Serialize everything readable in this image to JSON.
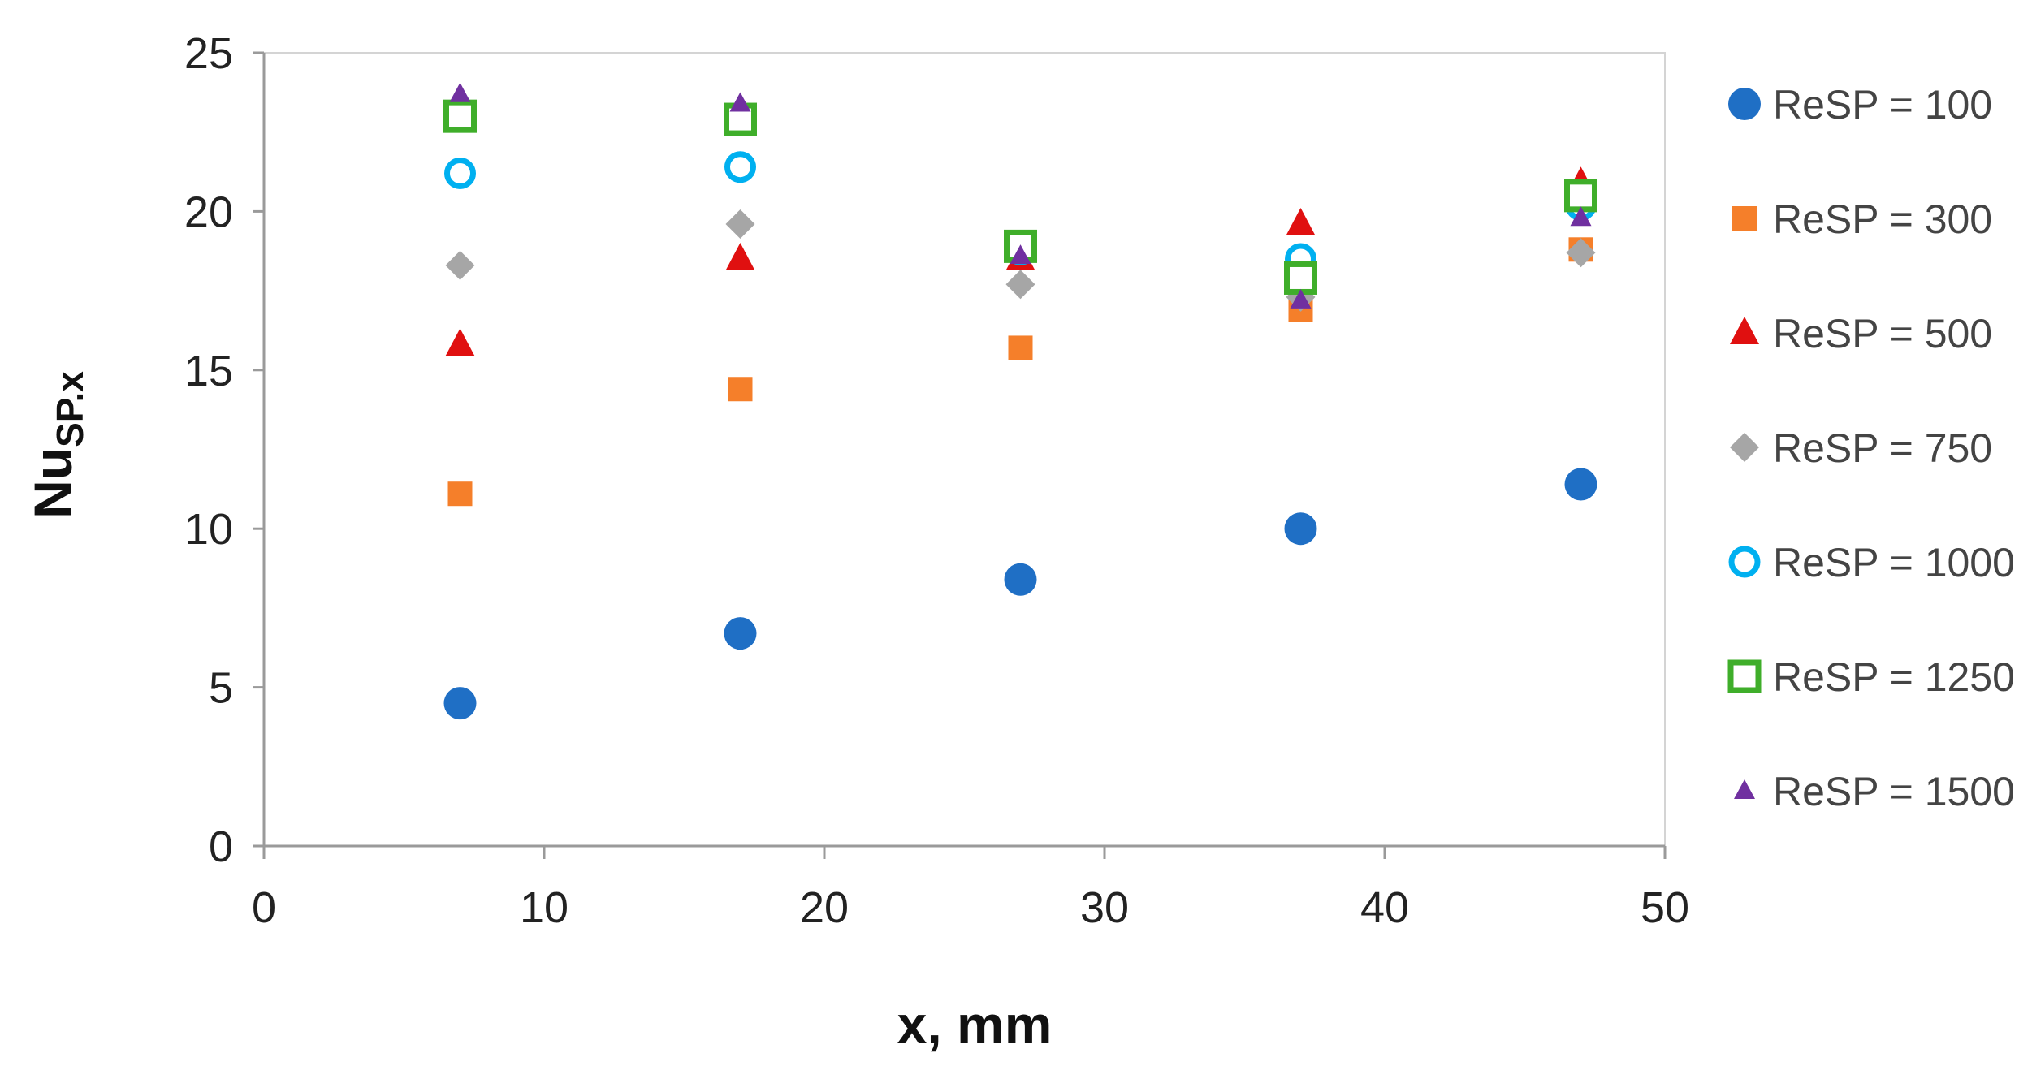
{
  "chart_data": {
    "type": "scatter",
    "xlabel": "x, mm",
    "ylabel": {
      "main": "Nu",
      "subscript": "SP.x"
    },
    "xlim": [
      0,
      50
    ],
    "ylim": [
      0,
      25
    ],
    "x_ticks": [
      0,
      10,
      20,
      30,
      40,
      50
    ],
    "y_ticks": [
      0,
      5,
      10,
      15,
      20,
      25
    ],
    "grid": false,
    "legend_position": "right",
    "series": [
      {
        "name": "ReSP = 100",
        "marker": "circle-filled",
        "color": "#1f6fc5",
        "points": [
          [
            7,
            4.5
          ],
          [
            17,
            6.7
          ],
          [
            27,
            8.4
          ],
          [
            37,
            10.0
          ],
          [
            47,
            11.4
          ]
        ]
      },
      {
        "name": "ReSP = 300",
        "marker": "square-filled",
        "color": "#f57f2a",
        "points": [
          [
            7,
            11.1
          ],
          [
            17,
            14.4
          ],
          [
            27,
            15.7
          ],
          [
            37,
            16.9
          ],
          [
            47,
            18.8
          ]
        ]
      },
      {
        "name": "ReSP = 500",
        "marker": "triangle-filled",
        "color": "#e01010",
        "points": [
          [
            7,
            15.8
          ],
          [
            17,
            18.5
          ],
          [
            27,
            18.5
          ],
          [
            37,
            19.6
          ],
          [
            47,
            20.9
          ]
        ]
      },
      {
        "name": "ReSP = 750",
        "marker": "diamond-filled",
        "color": "#a6a6a6",
        "points": [
          [
            7,
            18.3
          ],
          [
            17,
            19.6
          ],
          [
            27,
            17.7
          ],
          [
            37,
            17.3
          ],
          [
            47,
            18.7
          ]
        ]
      },
      {
        "name": "ReSP = 1000",
        "marker": "circle-open",
        "color": "#00b0f0",
        "points": [
          [
            7,
            21.2
          ],
          [
            17,
            21.4
          ],
          [
            27,
            18.8
          ],
          [
            37,
            18.5
          ],
          [
            47,
            20.2
          ]
        ]
      },
      {
        "name": "ReSP = 1250",
        "marker": "square-open",
        "color": "#3fae2a",
        "points": [
          [
            7,
            23.0
          ],
          [
            17,
            22.9
          ],
          [
            27,
            18.9
          ],
          [
            37,
            17.9
          ],
          [
            47,
            20.5
          ]
        ]
      },
      {
        "name": "ReSP = 1500",
        "marker": "triangle-small",
        "color": "#7030a0",
        "points": [
          [
            7,
            23.7
          ],
          [
            17,
            23.4
          ],
          [
            27,
            18.6
          ],
          [
            37,
            17.2
          ],
          [
            47,
            19.8
          ]
        ]
      }
    ]
  }
}
